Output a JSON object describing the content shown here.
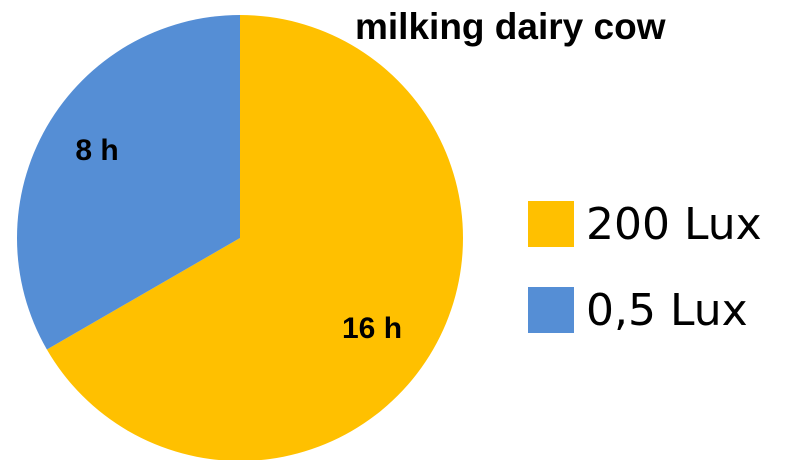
{
  "chart_data": {
    "type": "pie",
    "title": "milking dairy cow",
    "slices": [
      {
        "label": "200 Lux",
        "value": 16,
        "data_label": "16 h",
        "color": "#FFC000"
      },
      {
        "label": "0,5 Lux",
        "value": 8,
        "data_label": "8 h",
        "color": "#558ED5"
      }
    ],
    "legend_position": "right",
    "start_angle": "12 o'clock, clockwise"
  }
}
